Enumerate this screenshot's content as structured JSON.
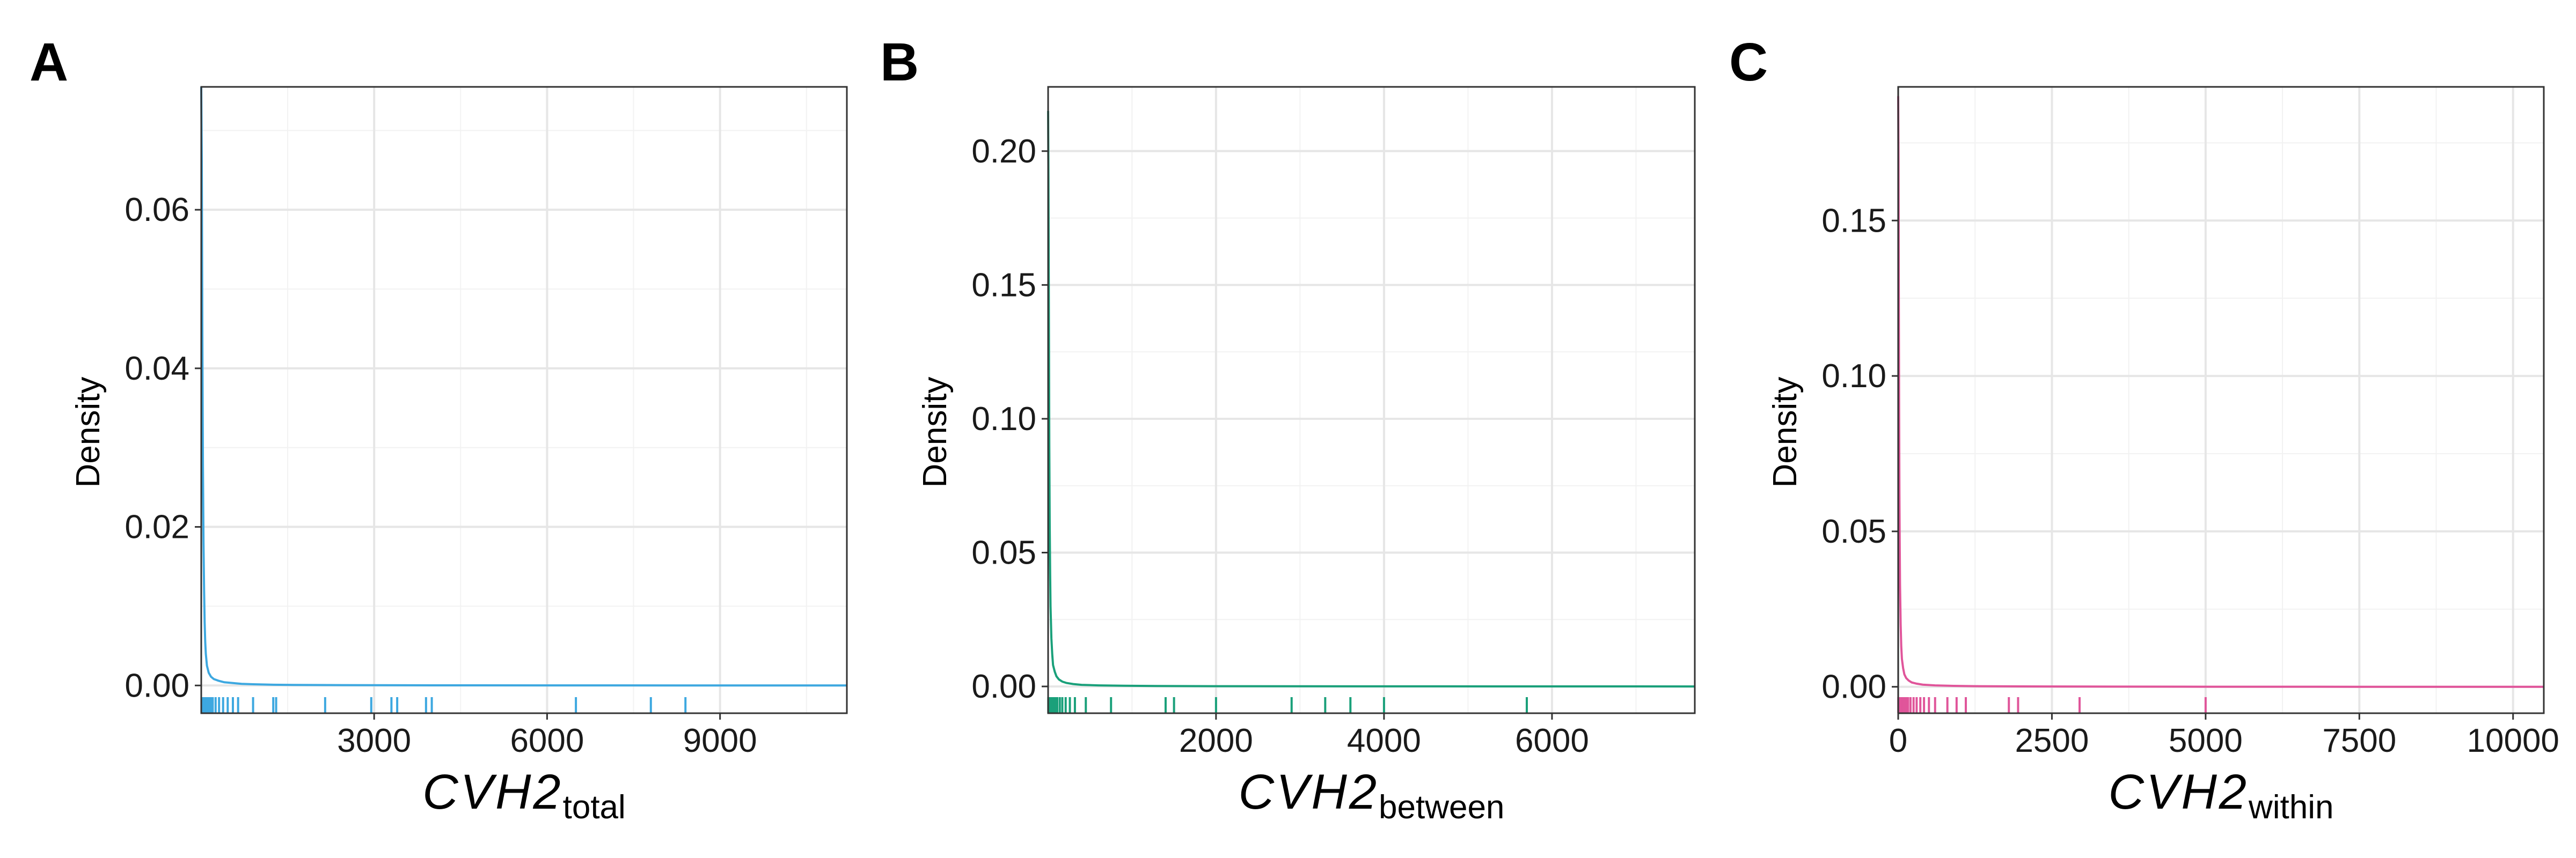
{
  "chart_data": [
    {
      "type": "density",
      "panel_label": "A",
      "title": "",
      "ylabel": "Density",
      "xlabel_main": "CVH2",
      "xlabel_sub": "total",
      "xlim": [
        1,
        11200
      ],
      "ylim": [
        -0.0035,
        0.0755
      ],
      "x_ticks": [
        3000,
        6000,
        9000
      ],
      "y_ticks": [
        0.0,
        0.02,
        0.04,
        0.06
      ],
      "y_tick_labels": [
        "0.00",
        "0.02",
        "0.04",
        "0.06"
      ],
      "grid": true,
      "color": "#3da8e0",
      "density_curve": {
        "x": [
          1,
          10,
          20,
          30,
          40,
          50,
          60,
          70,
          80,
          100,
          130,
          170,
          220,
          300,
          400,
          550,
          700,
          900,
          1200,
          1600,
          2200,
          3000,
          4000,
          6000,
          8500,
          11200
        ],
        "y": [
          0.0755,
          0.066,
          0.045,
          0.028,
          0.018,
          0.012,
          0.008,
          0.0055,
          0.004,
          0.0025,
          0.0016,
          0.0011,
          0.0008,
          0.0006,
          0.0004,
          0.0003,
          0.0002,
          0.00015,
          0.0001,
          7e-05,
          5e-05,
          3e-05,
          2e-05,
          1e-05,
          5e-06,
          2e-06
        ]
      },
      "rug": [
        5,
        15,
        25,
        35,
        45,
        60,
        75,
        90,
        110,
        140,
        170,
        200,
        250,
        310,
        380,
        460,
        550,
        640,
        900,
        1250,
        1300,
        2150,
        2950,
        3300,
        3400,
        3900,
        4000,
        6500,
        7800,
        8400
      ]
    },
    {
      "type": "density",
      "panel_label": "B",
      "title": "",
      "ylabel": "Density",
      "xlabel_main": "CVH2",
      "xlabel_sub": "between",
      "xlim": [
        1,
        7700
      ],
      "ylim": [
        -0.01,
        0.224
      ],
      "x_ticks": [
        2000,
        4000,
        6000
      ],
      "y_ticks": [
        0.0,
        0.05,
        0.1,
        0.15,
        0.2
      ],
      "y_tick_labels": [
        "0.00",
        "0.05",
        "0.10",
        "0.15",
        "0.20"
      ],
      "grid": true,
      "color": "#1aa07a",
      "density_curve": {
        "x": [
          1,
          5,
          10,
          15,
          20,
          25,
          30,
          40,
          50,
          60,
          80,
          100,
          130,
          170,
          220,
          300,
          400,
          600,
          900,
          1300,
          2000,
          3000,
          4500,
          6000,
          7700
        ],
        "y": [
          0.215,
          0.19,
          0.14,
          0.09,
          0.06,
          0.042,
          0.03,
          0.018,
          0.012,
          0.008,
          0.0055,
          0.0038,
          0.0026,
          0.0018,
          0.0013,
          0.0009,
          0.0006,
          0.0004,
          0.00025,
          0.00015,
          0.0001,
          6e-05,
          3e-05,
          1e-05,
          5e-06
        ]
      },
      "rug": [
        3,
        8,
        12,
        18,
        25,
        32,
        40,
        50,
        60,
        75,
        90,
        110,
        140,
        170,
        210,
        260,
        320,
        450,
        750,
        1400,
        1500,
        2000,
        2900,
        3300,
        3600,
        4000,
        5700
      ]
    },
    {
      "type": "density",
      "panel_label": "C",
      "title": "",
      "ylabel": "Density",
      "xlabel_main": "CVH2",
      "xlabel_sub": "within",
      "xlim": [
        0,
        10500
      ],
      "ylim": [
        -0.0085,
        0.193
      ],
      "x_ticks": [
        0,
        2500,
        5000,
        7500,
        10000
      ],
      "y_ticks": [
        0.0,
        0.05,
        0.1,
        0.15
      ],
      "y_tick_labels": [
        "0.00",
        "0.05",
        "0.10",
        "0.15"
      ],
      "grid": true,
      "color": "#e0559a",
      "density_curve": {
        "x": [
          0,
          5,
          10,
          15,
          20,
          25,
          30,
          40,
          50,
          60,
          80,
          100,
          130,
          170,
          220,
          300,
          400,
          600,
          900,
          1300,
          2000,
          3000,
          5000,
          7500,
          10500
        ],
        "y": [
          0.19,
          0.17,
          0.13,
          0.09,
          0.062,
          0.045,
          0.033,
          0.02,
          0.013,
          0.009,
          0.006,
          0.004,
          0.0028,
          0.002,
          0.0014,
          0.001,
          0.0007,
          0.00045,
          0.0003,
          0.0002,
          0.00012,
          7e-05,
          3e-05,
          1e-05,
          5e-06
        ]
      },
      "rug": [
        2,
        6,
        10,
        15,
        20,
        28,
        36,
        45,
        55,
        70,
        85,
        100,
        130,
        160,
        200,
        250,
        300,
        360,
        420,
        500,
        600,
        800,
        950,
        1100,
        1800,
        1950,
        2950,
        5000
      ]
    }
  ]
}
